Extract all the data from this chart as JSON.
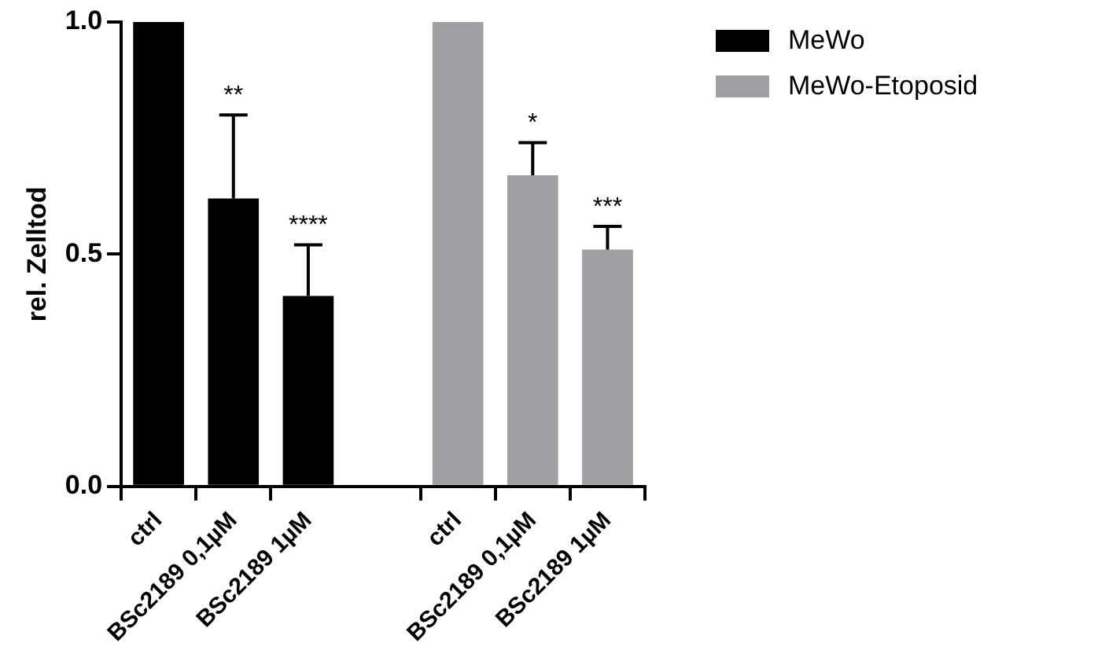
{
  "chart_data": {
    "type": "bar",
    "ylabel": "rel. Zelltod",
    "categories": [
      "ctrl",
      "BSc2189 0,1µM",
      "BSc2189 1µM",
      null,
      "ctrl",
      "BSc2189 0,1µM",
      "BSc2189 1µM"
    ],
    "series": [
      {
        "name": "MeWo",
        "color": "#000000",
        "values": [
          1.0,
          0.62,
          0.41,
          null,
          null,
          null,
          null
        ],
        "errors": [
          null,
          0.18,
          0.11,
          null,
          null,
          null,
          null
        ]
      },
      {
        "name": "MeWo-Etoposid",
        "color": "#a0a0a4",
        "values": [
          null,
          null,
          null,
          null,
          1.0,
          0.67,
          0.51
        ],
        "errors": [
          null,
          null,
          null,
          null,
          null,
          0.07,
          0.05
        ]
      }
    ],
    "ylim": [
      0,
      1
    ],
    "yticks": [
      {
        "value": 0,
        "label": "0.0"
      },
      {
        "value": 0.5,
        "label": "0.5"
      },
      {
        "value": 1,
        "label": "1.0"
      }
    ],
    "annotations": [
      "**",
      "****",
      "*",
      "***"
    ],
    "grid": false,
    "legend": "top right"
  }
}
